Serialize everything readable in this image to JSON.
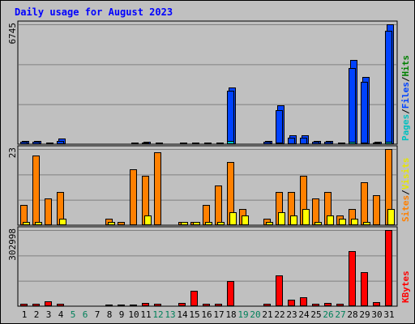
{
  "chart_data": {
    "type": "bar",
    "title": "Daily usage for August 2023",
    "categories": [
      "1",
      "2",
      "3",
      "4",
      "5",
      "6",
      "7",
      "8",
      "9",
      "10",
      "11",
      "12",
      "13",
      "14",
      "15",
      "16",
      "17",
      "18",
      "19",
      "20",
      "21",
      "22",
      "23",
      "24",
      "25",
      "26",
      "27",
      "28",
      "29",
      "30",
      "31"
    ],
    "weekend_days": [
      "5",
      "6",
      "12",
      "13",
      "19",
      "20",
      "26",
      "27"
    ],
    "panels": [
      {
        "max_label": "6745",
        "ylim": [
          0,
          6745
        ],
        "legend": [
          "Pages",
          "Files",
          "Hits"
        ],
        "series": [
          {
            "name": "Hits",
            "color": "#0042ff",
            "values": [
              180,
              180,
              70,
              300,
              0,
              0,
              0,
              40,
              40,
              80,
              140,
              90,
              0,
              90,
              90,
              90,
              90,
              3180,
              0,
              0,
              180,
              2200,
              500,
              500,
              180,
              180,
              90,
              4730,
              3780,
              150,
              6745
            ]
          },
          {
            "name": "Files",
            "color": "#0042ff",
            "values": [
              120,
              120,
              40,
              180,
              0,
              0,
              0,
              20,
              20,
              50,
              90,
              60,
              0,
              60,
              60,
              60,
              60,
              3000,
              0,
              0,
              120,
              1900,
              350,
              350,
              120,
              120,
              60,
              4300,
              3500,
              100,
              6400
            ]
          },
          {
            "name": "Pages",
            "color": "#00c8c8",
            "values": [
              40,
              40,
              10,
              60,
              0,
              0,
              0,
              5,
              5,
              15,
              30,
              20,
              0,
              20,
              20,
              20,
              20,
              190,
              0,
              0,
              40,
              90,
              60,
              60,
              40,
              40,
              20,
              120,
              110,
              30,
              150
            ]
          }
        ]
      },
      {
        "max_label": "23",
        "ylim": [
          0,
          23
        ],
        "legend": [
          "Sites",
          "Visits"
        ],
        "series": [
          {
            "name": "Visits",
            "color": "#ff8000",
            "values": [
              6,
              21,
              8,
              10,
              0,
              0,
              0,
              2,
              1,
              17,
              15,
              22,
              0,
              1,
              1,
              6,
              12,
              19,
              5,
              0,
              2,
              10,
              10,
              15,
              8,
              10,
              3,
              5,
              13,
              9,
              23
            ]
          },
          {
            "name": "Sites",
            "color": "#ffff00",
            "values": [
              1,
              1,
              0,
              2,
              0,
              0,
              0,
              1,
              0,
              0,
              3,
              0,
              0,
              1,
              1,
              1,
              1,
              4,
              3,
              0,
              1,
              4,
              3,
              5,
              1,
              3,
              2,
              2,
              1,
              0,
              5
            ]
          }
        ]
      },
      {
        "max_label": "302998",
        "ylim": [
          0,
          302998
        ],
        "legend": [
          "KBytes"
        ],
        "series": [
          {
            "name": "KBytes",
            "color": "#ff0000",
            "values": [
              9000,
              9000,
              18000,
              9000,
              0,
              0,
              0,
              5000,
              5000,
              7000,
              13000,
              9000,
              0,
              14000,
              60000,
              10000,
              9000,
              100000,
              0,
              0,
              9000,
              122000,
              27000,
              37000,
              11000,
              14000,
              11000,
              220000,
              135000,
              17000,
              302998
            ]
          }
        ]
      }
    ]
  }
}
